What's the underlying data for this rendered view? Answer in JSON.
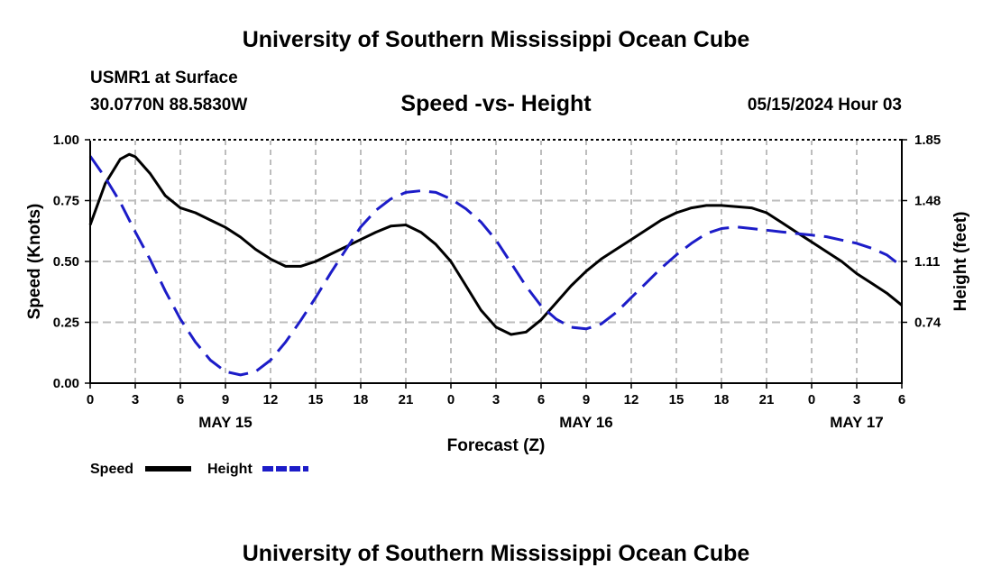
{
  "header": {
    "title": "University of Southern Mississippi Ocean Cube",
    "station": "USMR1 at Surface",
    "coords": "30.0770N  88.5830W",
    "datetime": "05/15/2024 Hour 03"
  },
  "footer": {
    "title": "University of Southern Mississippi Ocean Cube"
  },
  "chart_data": {
    "type": "line",
    "title": "Speed -vs- Height",
    "xlabel": "Forecast (Z)",
    "ylabel": "Speed (Knots)",
    "y2label": "Height (feet)",
    "x_ticks": [
      "0",
      "3",
      "6",
      "9",
      "12",
      "15",
      "18",
      "21",
      "0",
      "3",
      "6",
      "9",
      "12",
      "15",
      "18",
      "21",
      "0",
      "3",
      "6"
    ],
    "date_labels": [
      {
        "label": "MAY 15",
        "hour": 9
      },
      {
        "label": "MAY 16",
        "hour": 33
      },
      {
        "label": "MAY 17",
        "hour": 51
      }
    ],
    "xlim": [
      0,
      54
    ],
    "ylim": [
      0,
      1.0
    ],
    "y_ticks": [
      "0.00",
      "0.25",
      "0.50",
      "0.75",
      "1.00"
    ],
    "y2lim": [
      0.37,
      1.85
    ],
    "y2_ticks": [
      "0.74",
      "1.11",
      "1.48",
      "1.85"
    ],
    "grid": true,
    "legend_position": "bottom-left",
    "series": [
      {
        "name": "Speed",
        "axis": "left",
        "color": "#000000",
        "dash": "solid",
        "x": [
          0,
          1,
          2,
          2.6,
          3,
          4,
          5,
          6,
          7,
          8,
          9,
          10,
          11,
          12,
          13,
          14,
          15,
          16,
          17,
          18,
          19,
          20,
          21,
          22,
          23,
          24,
          25,
          26,
          27,
          28,
          29,
          30,
          31,
          32,
          33,
          34,
          35,
          36,
          37,
          38,
          39,
          40,
          41,
          42,
          43,
          44,
          45,
          46,
          47,
          48,
          49,
          50,
          51,
          52,
          53,
          54
        ],
        "y": [
          0.65,
          0.82,
          0.92,
          0.94,
          0.93,
          0.86,
          0.77,
          0.72,
          0.7,
          0.67,
          0.64,
          0.6,
          0.55,
          0.51,
          0.48,
          0.48,
          0.5,
          0.53,
          0.56,
          0.59,
          0.62,
          0.645,
          0.65,
          0.62,
          0.57,
          0.5,
          0.4,
          0.3,
          0.23,
          0.2,
          0.21,
          0.26,
          0.33,
          0.4,
          0.46,
          0.51,
          0.55,
          0.59,
          0.63,
          0.67,
          0.7,
          0.72,
          0.73,
          0.73,
          0.725,
          0.72,
          0.7,
          0.66,
          0.62,
          0.58,
          0.54,
          0.5,
          0.45,
          0.41,
          0.37,
          0.32
        ]
      },
      {
        "name": "Height",
        "axis": "right",
        "color": "#1c1cc8",
        "dash": "dashed",
        "x": [
          0,
          1,
          2,
          3,
          4,
          5,
          6,
          7,
          8,
          9,
          10,
          11,
          12,
          13,
          14,
          15,
          16,
          17,
          18,
          19,
          20,
          21,
          22,
          23,
          24,
          25,
          26,
          27,
          28,
          29,
          30,
          31,
          32,
          33,
          34,
          35,
          36,
          37,
          38,
          39,
          40,
          41,
          42,
          43,
          44,
          45,
          46,
          47,
          48,
          49,
          50,
          51,
          52,
          53,
          54
        ],
        "y": [
          1.75,
          1.62,
          1.47,
          1.29,
          1.12,
          0.93,
          0.76,
          0.62,
          0.51,
          0.44,
          0.42,
          0.44,
          0.51,
          0.62,
          0.75,
          0.89,
          1.04,
          1.18,
          1.32,
          1.42,
          1.49,
          1.53,
          1.54,
          1.53,
          1.49,
          1.43,
          1.35,
          1.24,
          1.1,
          0.96,
          0.84,
          0.76,
          0.71,
          0.7,
          0.73,
          0.8,
          0.89,
          0.98,
          1.07,
          1.15,
          1.22,
          1.28,
          1.31,
          1.32,
          1.31,
          1.3,
          1.29,
          1.28,
          1.27,
          1.26,
          1.24,
          1.22,
          1.19,
          1.15,
          1.08
        ]
      }
    ]
  }
}
